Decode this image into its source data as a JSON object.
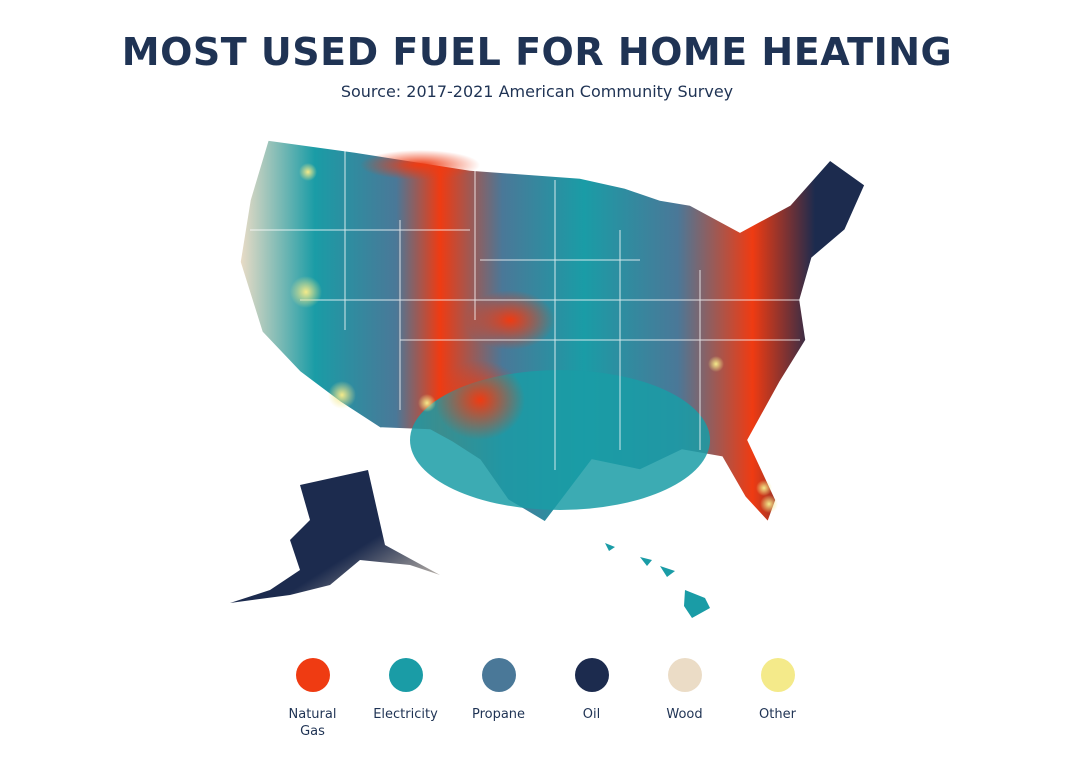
{
  "header": {
    "title": "MOST USED FUEL FOR HOME HEATING",
    "subtitle": "Source: 2017-2021 American Community Survey"
  },
  "legend": {
    "items": [
      {
        "label": "Natural Gas",
        "color": "#ef3b12"
      },
      {
        "label": "Electricity",
        "color": "#1a9ca6"
      },
      {
        "label": "Propane",
        "color": "#4a7898"
      },
      {
        "label": "Oil",
        "color": "#1c2b4e"
      },
      {
        "label": "Wood",
        "color": "#ebdcc6"
      },
      {
        "label": "Other",
        "color": "#f4ea8a"
      }
    ]
  }
}
